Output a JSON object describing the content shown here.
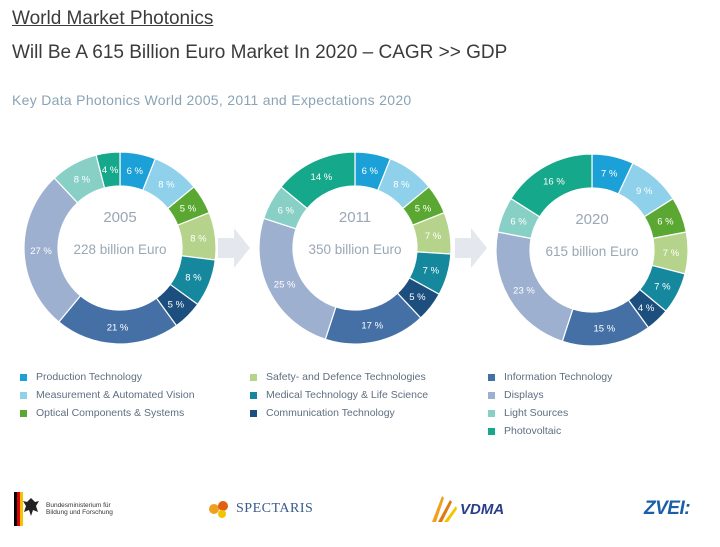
{
  "header": {
    "title": "World Market Photonics",
    "headline": "Will Be A 615 Billion Euro Market In 2020 – CAGR >> GDP",
    "subtitle": "Key Data Photonics World 2005, 2011 and Expectations 2020"
  },
  "colors": {
    "Production Technology": "#1ba0d8",
    "Measurement & Automated Vision": "#8fd0ea",
    "Optical Components & Systems": "#5aa832",
    "Safety- and Defence Technologies": "#b5d38a",
    "Medical Technology & Life Science": "#15889e",
    "Communication Technology": "#1c4f7e",
    "Information Technology": "#4470a6",
    "Displays": "#9eb0cf",
    "Light Sources": "#88cfc6",
    "Photovoltaic": "#16a88a"
  },
  "legend": {
    "col1": [
      "Production Technology",
      "Measurement & Automated Vision",
      "Optical Components & Systems"
    ],
    "col2": [
      "Safety- and Defence Technologies",
      "Medical Technology & Life Science",
      "Communication Technology"
    ],
    "col3": [
      "Information Technology",
      "Displays",
      "Light Sources",
      "Photovoltaic"
    ]
  },
  "logos": {
    "bmbf": "Bundesministerium für Bildung und Forschung",
    "spectaris": "SPECTARIS",
    "vdma": "VDMA",
    "zvei": "ZVEI:"
  },
  "chart_data": [
    {
      "type": "pie",
      "year": "2005",
      "center_label": "228 billion Euro",
      "slices": [
        {
          "category": "Production Technology",
          "value": 6
        },
        {
          "category": "Measurement & Automated Vision",
          "value": 8
        },
        {
          "category": "Optical Components & Systems",
          "value": 5
        },
        {
          "category": "Safety- and Defence Technologies",
          "value": 8
        },
        {
          "category": "Medical Technology & Life Science",
          "value": 8
        },
        {
          "category": "Communication Technology",
          "value": 5
        },
        {
          "category": "Information Technology",
          "value": 21
        },
        {
          "category": "Displays",
          "value": 27
        },
        {
          "category": "Light Sources",
          "value": 8
        },
        {
          "category": "Photovoltaic",
          "value": 4
        }
      ]
    },
    {
      "type": "pie",
      "year": "2011",
      "center_label": "350 billion Euro",
      "slices": [
        {
          "category": "Production Technology",
          "value": 6
        },
        {
          "category": "Measurement & Automated Vision",
          "value": 8
        },
        {
          "category": "Optical Components & Systems",
          "value": 5
        },
        {
          "category": "Safety- and Defence Technologies",
          "value": 7
        },
        {
          "category": "Medical Technology & Life Science",
          "value": 7
        },
        {
          "category": "Communication Technology",
          "value": 5
        },
        {
          "category": "Information Technology",
          "value": 17
        },
        {
          "category": "Displays",
          "value": 25
        },
        {
          "category": "Light Sources",
          "value": 6
        },
        {
          "category": "Photovoltaic",
          "value": 14
        }
      ]
    },
    {
      "type": "pie",
      "year": "2020",
      "center_label": "615 billion Euro",
      "slices": [
        {
          "category": "Production Technology",
          "value": 7
        },
        {
          "category": "Measurement & Automated Vision",
          "value": 9
        },
        {
          "category": "Optical Components & Systems",
          "value": 6
        },
        {
          "category": "Safety- and Defence Technologies",
          "value": 7
        },
        {
          "category": "Medical Technology & Life Science",
          "value": 7
        },
        {
          "category": "Communication Technology",
          "value": 4
        },
        {
          "category": "Information Technology",
          "value": 15
        },
        {
          "category": "Displays",
          "value": 23
        },
        {
          "category": "Light Sources",
          "value": 6
        },
        {
          "category": "Photovoltaic",
          "value": 16
        }
      ]
    }
  ]
}
